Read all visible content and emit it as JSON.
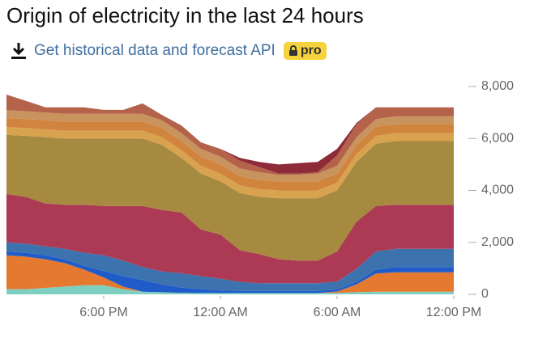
{
  "header": {
    "title": "Origin of electricity in the last 24 hours",
    "link": "Get historical data and forecast API",
    "badge": "pro"
  },
  "chart_data": {
    "type": "stacked_area",
    "x": [
      13,
      14,
      15,
      16,
      17,
      18,
      19,
      20,
      21,
      22,
      23,
      24,
      25,
      26,
      27,
      28,
      29,
      30,
      31,
      32,
      33,
      34,
      35,
      36
    ],
    "xlim": [
      13,
      36
    ],
    "xticks": [
      {
        "value": 18,
        "label": "6:00 PM"
      },
      {
        "value": 24,
        "label": "12:00 AM"
      },
      {
        "value": 30,
        "label": "6:00 AM"
      },
      {
        "value": 36,
        "label": "12:00 PM"
      }
    ],
    "ylim": [
      0,
      8000
    ],
    "yticks": [
      0,
      {
        "value": 2000,
        "label": "2,000"
      },
      {
        "value": 4000,
        "label": "4,000"
      },
      {
        "value": 6000,
        "label": "6,000"
      },
      {
        "value": 8000,
        "label": "8,000"
      }
    ],
    "series": [
      {
        "color": "#7fcfc0",
        "values": [
          200,
          200,
          250,
          300,
          350,
          350,
          200,
          100,
          80,
          60,
          50,
          50,
          50,
          50,
          50,
          50,
          50,
          60,
          80,
          100,
          100,
          100,
          100,
          100
        ]
      },
      {
        "color": "#e5792f",
        "values": [
          1300,
          1250,
          1100,
          900,
          600,
          300,
          100,
          0,
          0,
          0,
          0,
          0,
          0,
          0,
          0,
          0,
          0,
          50,
          300,
          700,
          750,
          750,
          750,
          750
        ]
      },
      {
        "color": "#1f5cc9",
        "values": [
          150,
          150,
          150,
          150,
          150,
          250,
          400,
          450,
          300,
          200,
          150,
          100,
          80,
          80,
          80,
          80,
          80,
          80,
          100,
          150,
          200,
          200,
          200,
          200
        ]
      },
      {
        "color": "#3c72ad",
        "values": [
          350,
          350,
          350,
          400,
          500,
          600,
          600,
          500,
          500,
          550,
          500,
          450,
          350,
          300,
          300,
          300,
          300,
          300,
          500,
          700,
          700,
          700,
          700,
          700
        ]
      },
      {
        "color": "#ad3a55",
        "values": [
          1860,
          1800,
          1650,
          1700,
          1850,
          1900,
          2100,
          2350,
          2370,
          2340,
          1800,
          1700,
          1220,
          1120,
          920,
          870,
          870,
          1160,
          1820,
          1750,
          1700,
          1700,
          1700,
          1700
        ]
      },
      {
        "color": "#a68a3f",
        "values": [
          2280,
          2350,
          2550,
          2550,
          2550,
          2600,
          2600,
          2600,
          2500,
          2100,
          2150,
          2050,
          2200,
          2200,
          2350,
          2400,
          2400,
          2350,
          2300,
          2400,
          2450,
          2450,
          2450,
          2450
        ]
      },
      {
        "color": "#d8a24e",
        "values": [
          300,
          300,
          300,
          300,
          300,
          300,
          300,
          300,
          300,
          300,
          300,
          300,
          300,
          300,
          300,
          300,
          300,
          300,
          300,
          300,
          300,
          300,
          300,
          300
        ]
      },
      {
        "color": "#d0843e",
        "values": [
          350,
          350,
          350,
          350,
          350,
          350,
          350,
          350,
          350,
          350,
          350,
          350,
          350,
          350,
          350,
          350,
          350,
          350,
          350,
          350,
          350,
          350,
          350,
          350
        ]
      },
      {
        "color": "#c8935d",
        "values": [
          300,
          300,
          300,
          300,
          300,
          300,
          300,
          300,
          300,
          300,
          300,
          300,
          300,
          300,
          250,
          250,
          300,
          300,
          300,
          300,
          300,
          300,
          300,
          300
        ]
      },
      {
        "color": "#b4624a",
        "values": [
          600,
          400,
          200,
          250,
          250,
          150,
          150,
          400,
          200,
          300,
          250,
          300,
          300,
          200,
          50,
          50,
          50,
          400,
          500,
          450,
          350,
          350,
          350,
          350
        ]
      },
      {
        "color": "#8e2b38",
        "values": [
          0,
          0,
          0,
          0,
          0,
          0,
          0,
          0,
          0,
          0,
          0,
          0,
          100,
          200,
          350,
          400,
          400,
          250,
          50,
          0,
          0,
          0,
          0,
          0
        ]
      }
    ]
  }
}
